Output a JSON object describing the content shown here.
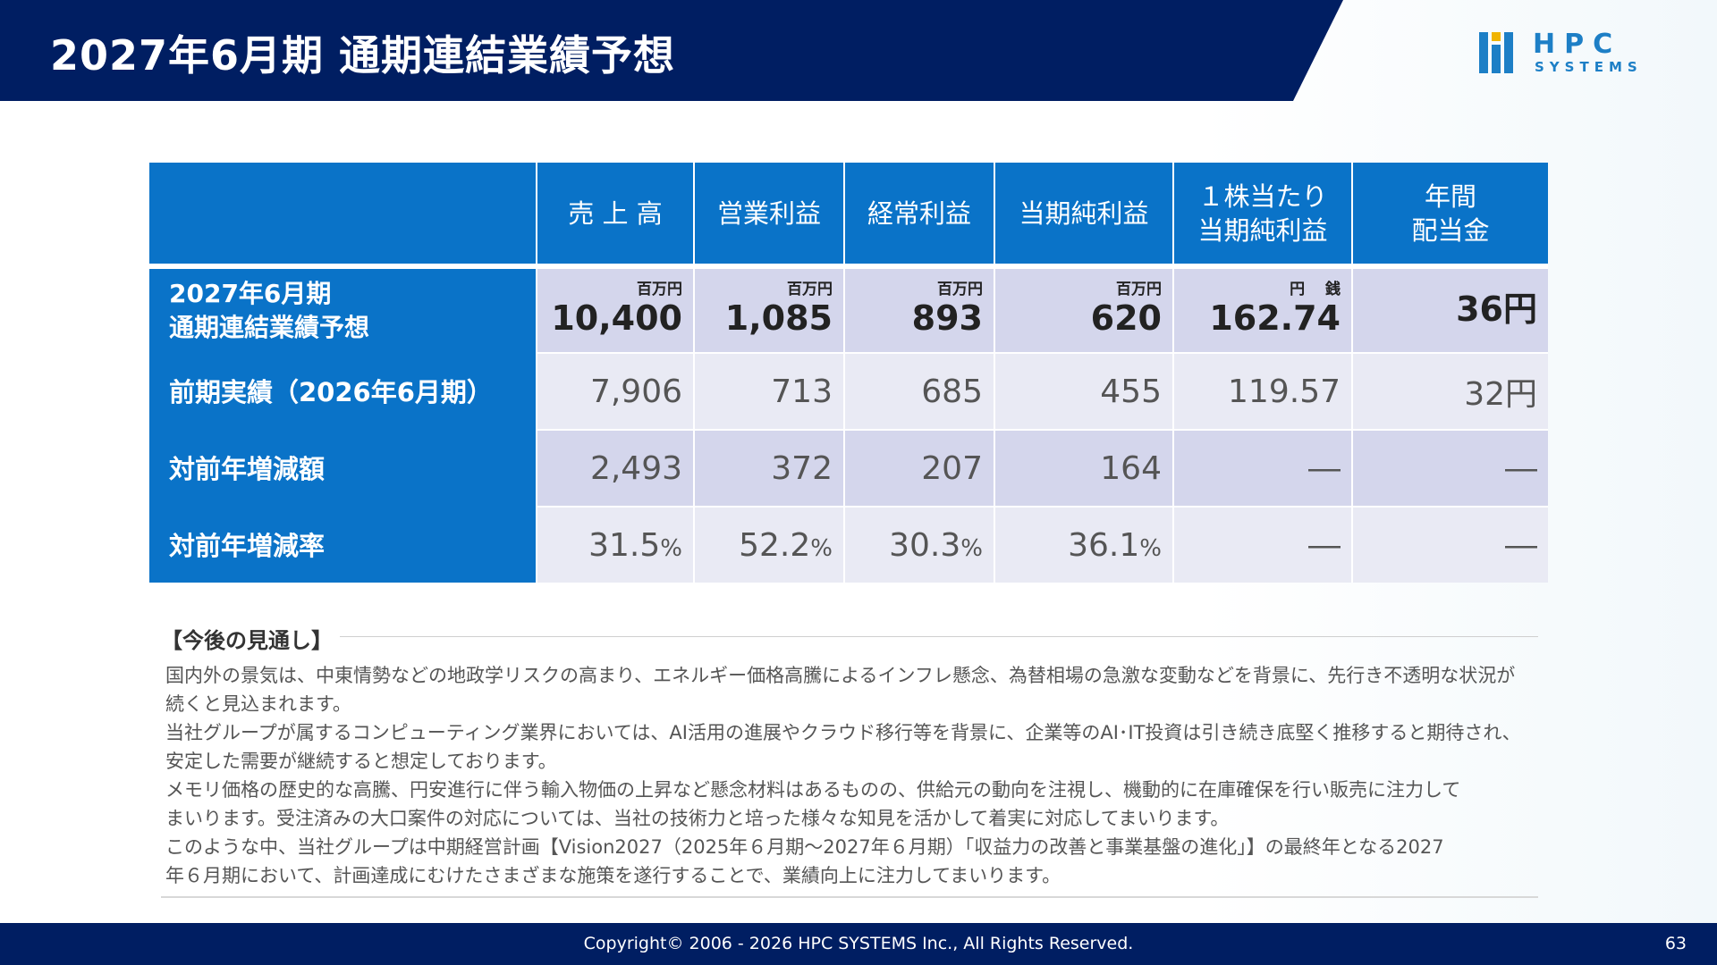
{
  "header": {
    "title": "2027年6月期 通期連結業績予想",
    "logo": {
      "top": "HPC",
      "bottom": "SYSTEMS",
      "icon": "hpc-logo-icon"
    }
  },
  "colors": {
    "navy": "#001e62",
    "table_header_blue": "#0a73c8",
    "cell_dark": "#d4d6ec",
    "cell_light": "#e9eaf4"
  },
  "table": {
    "columns": [
      "売 上 高",
      "営業利益",
      "経常利益",
      "当期純利益",
      "１株当たり\n当期純利益",
      "年間\n配当金"
    ],
    "rows": [
      {
        "label_line1": "2027年6月期",
        "label_line2": "通期連結業績予想",
        "cells": [
          {
            "unit": "百万円",
            "value": "10,400"
          },
          {
            "unit": "百万円",
            "value": "1,085"
          },
          {
            "unit": "百万円",
            "value": "893"
          },
          {
            "unit": "百万円",
            "value": "620"
          },
          {
            "unit": "円　 銭",
            "value": "162.74"
          },
          {
            "unit": "",
            "value": "36円"
          }
        ]
      },
      {
        "label": "前期実績（2026年6月期）",
        "cells": [
          "7,906",
          "713",
          "685",
          "455",
          "119.57",
          "32円"
        ]
      },
      {
        "label": "対前年増減額",
        "cells": [
          "2,493",
          "372",
          "207",
          "164",
          "―",
          "―"
        ]
      },
      {
        "label": "対前年増減率",
        "cells": [
          {
            "num": "31.5",
            "suffix": "%"
          },
          {
            "num": "52.2",
            "suffix": "%"
          },
          {
            "num": "30.3",
            "suffix": "%"
          },
          {
            "num": "36.1",
            "suffix": "%"
          },
          {
            "num": "―",
            "suffix": ""
          },
          {
            "num": "―",
            "suffix": ""
          }
        ]
      }
    ]
  },
  "outlook": {
    "title": "【今後の見通し】",
    "lines": [
      "国内外の景気は、中東情勢などの地政学リスクの高まり、エネルギー価格高騰によるインフレ懸念、為替相場の急激な変動などを背景に、先行き不透明な状況が",
      "続くと見込まれます。",
      "当社グループが属するコンピューティング業界においては、AI活用の進展やクラウド移行等を背景に、企業等のAI･IT投資は引き続き底堅く推移すると期待され、",
      "安定した需要が継続すると想定しております。",
      "メモリ価格の歴史的な高騰、円安進行に伴う輸入物価の上昇など懸念材料はあるものの、供給元の動向を注視し、機動的に在庫確保を行い販売に注力して",
      "まいります。受注済みの大口案件の対応については、当社の技術力と培った様々な知見を活かして着実に対応してまいります。",
      "このような中、当社グループは中期経営計画【Vision2027（2025年６月期～2027年６月期）「収益力の改善と事業基盤の進化」】の最終年となる2027",
      "年６月期において、計画達成にむけたさまざまな施策を遂行することで、業績向上に注力してまいります。"
    ]
  },
  "footer": {
    "copyright": "Copyright© 2006 - 2026 HPC SYSTEMS Inc., All Rights Reserved.",
    "page_number": "63"
  }
}
